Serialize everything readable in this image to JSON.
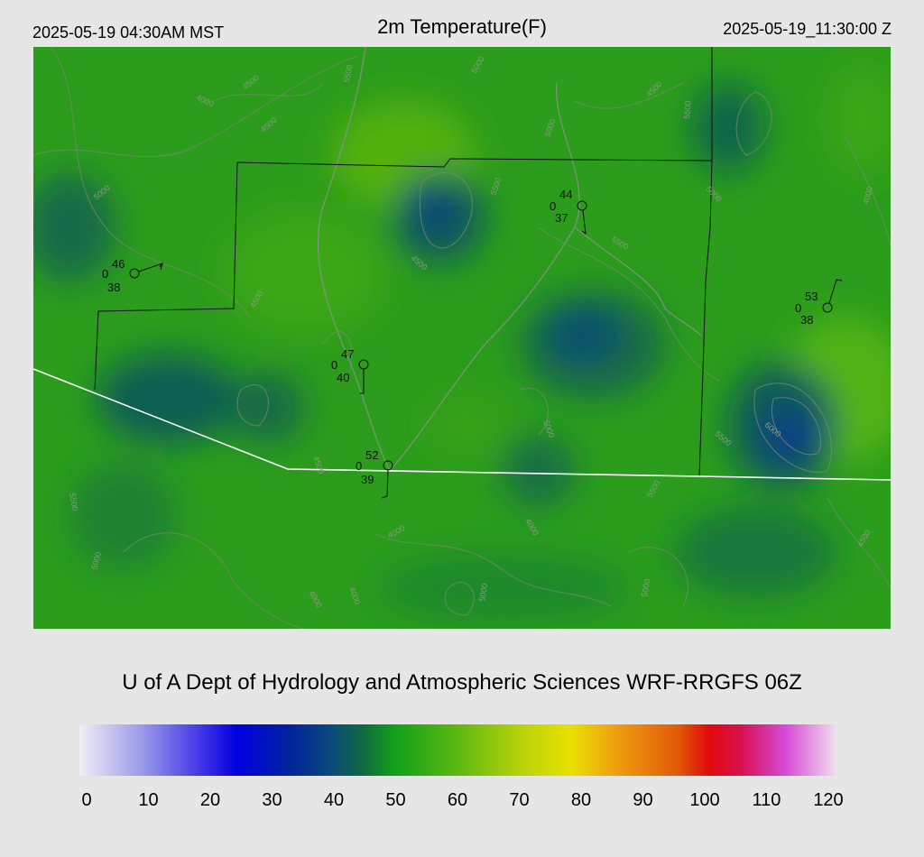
{
  "header": {
    "local_time": "2025-05-19 04:30AM MST",
    "title": "2m Temperature(F)",
    "utc_time": "2025-05-19_11:30:00 Z"
  },
  "credit": "U of A Dept of Hydrology and Atmospheric Sciences WRF-RRGFS 06Z",
  "colorbar": {
    "ticks": [
      "0",
      "10",
      "20",
      "30",
      "40",
      "50",
      "60",
      "70",
      "80",
      "90",
      "100",
      "110",
      "120"
    ],
    "stops": [
      {
        "v": 0,
        "c": "#f0eef6"
      },
      {
        "v": 10,
        "c": "#9a9ae8"
      },
      {
        "v": 20,
        "c": "#3a2ee6"
      },
      {
        "v": 25,
        "c": "#0000e0"
      },
      {
        "v": 33,
        "c": "#0022a0"
      },
      {
        "v": 40,
        "c": "#0a4a7a"
      },
      {
        "v": 45,
        "c": "#106a40"
      },
      {
        "v": 50,
        "c": "#12a01a"
      },
      {
        "v": 60,
        "c": "#5cb812"
      },
      {
        "v": 70,
        "c": "#b8d20a"
      },
      {
        "v": 78,
        "c": "#e8e000"
      },
      {
        "v": 85,
        "c": "#f0a010"
      },
      {
        "v": 95,
        "c": "#e05a08"
      },
      {
        "v": 100,
        "c": "#e00a0a"
      },
      {
        "v": 105,
        "c": "#d81050"
      },
      {
        "v": 112,
        "c": "#d64ad6"
      },
      {
        "v": 120,
        "c": "#f0dcee"
      }
    ]
  },
  "stations": [
    {
      "temp": "46",
      "wind": "0",
      "dew": "38"
    },
    {
      "temp": "44",
      "wind": "0",
      "dew": "37"
    },
    {
      "temp": "53",
      "wind": "0",
      "dew": "38"
    },
    {
      "temp": "47",
      "wind": "0",
      "dew": "40"
    },
    {
      "temp": "52",
      "wind": "0",
      "dew": "39"
    }
  ],
  "contour_labels": [
    "4000",
    "4500",
    "5000",
    "5500",
    "6000"
  ],
  "colors": {
    "background": "#e6e6e6",
    "map_base": "#2a9a1a",
    "contour": "#7a8a72",
    "boundary": "#ffffff",
    "county_line": "#111111"
  }
}
